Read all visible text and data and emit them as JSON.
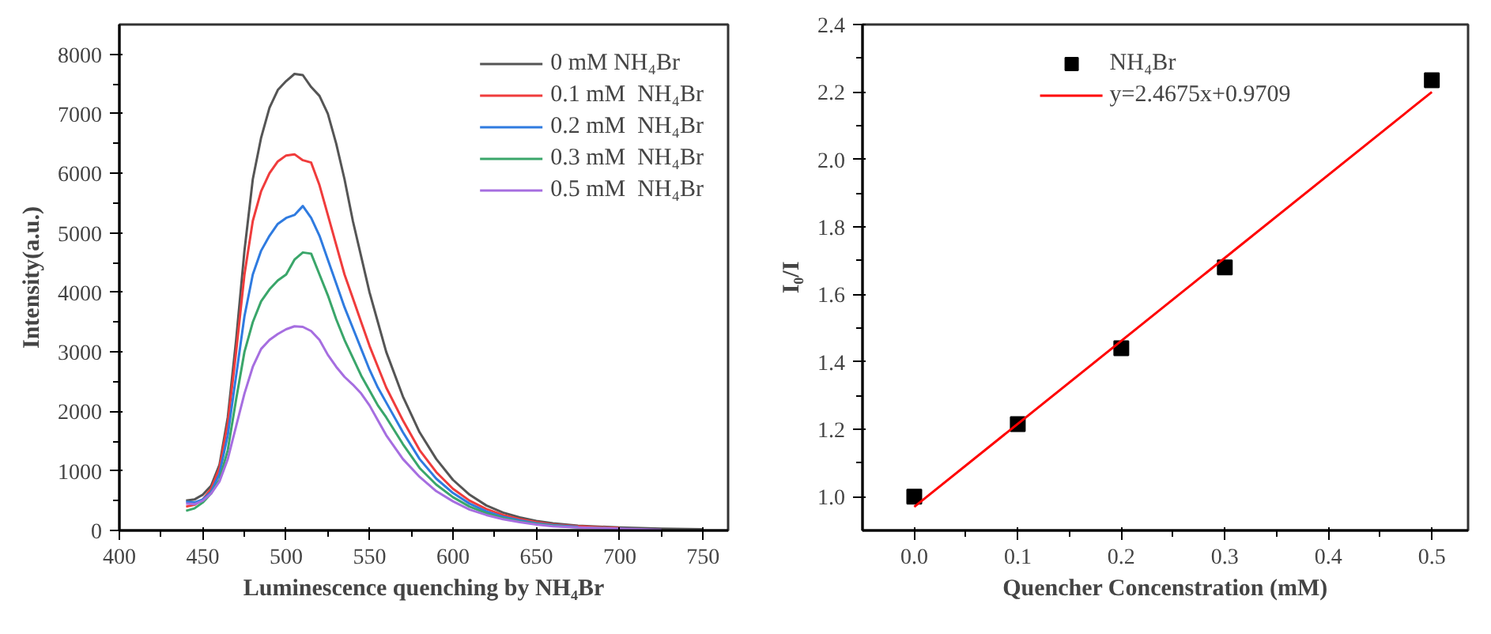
{
  "chart_data": [
    {
      "type": "line",
      "xlabel": "Luminescence quenching by NH₄Br",
      "ylabel": "Intensity(a.u.)",
      "xlim": [
        400,
        765
      ],
      "ylim": [
        0,
        8500
      ],
      "xticks": [
        400,
        450,
        500,
        550,
        600,
        650,
        700,
        750
      ],
      "yticks": [
        0,
        1000,
        2000,
        3000,
        4000,
        5000,
        6000,
        7000,
        8000
      ],
      "legend": "top right",
      "x": [
        440,
        445,
        450,
        455,
        460,
        465,
        470,
        475,
        480,
        485,
        490,
        495,
        500,
        505,
        510,
        515,
        520,
        525,
        530,
        535,
        540,
        545,
        550,
        555,
        560,
        570,
        580,
        590,
        600,
        610,
        620,
        630,
        640,
        650,
        660,
        675,
        700,
        725,
        750
      ],
      "series": [
        {
          "name": "0 mM NH₄Br",
          "color": "#555555",
          "values": [
            500,
            520,
            600,
            750,
            1100,
            1900,
            3200,
            4700,
            5900,
            6600,
            7100,
            7400,
            7550,
            7670,
            7650,
            7450,
            7300,
            7000,
            6500,
            5900,
            5200,
            4600,
            4000,
            3500,
            3000,
            2250,
            1650,
            1200,
            850,
            600,
            420,
            300,
            220,
            160,
            120,
            80,
            50,
            30,
            20
          ]
        },
        {
          "name": "0.1 mM  NH₄Br",
          "color": "#f03c3c",
          "x": [
            440,
            445,
            450,
            455,
            460,
            465,
            470,
            475,
            480,
            485,
            490,
            495,
            500,
            505,
            510,
            515,
            520,
            525,
            530,
            535,
            540,
            545,
            550,
            555,
            560,
            570,
            580,
            590,
            600,
            610,
            620,
            630,
            640,
            650,
            660,
            675,
            700
          ],
          "values": [
            400,
            430,
            520,
            700,
            1050,
            1800,
            3000,
            4300,
            5200,
            5700,
            6000,
            6200,
            6300,
            6320,
            6220,
            6180,
            5800,
            5300,
            4800,
            4300,
            3900,
            3500,
            3100,
            2750,
            2400,
            1850,
            1350,
            980,
            700,
            500,
            360,
            260,
            190,
            140,
            100,
            70,
            40
          ]
        },
        {
          "name": "0.2 mM  NH₄Br",
          "color": "#2f7be0",
          "x": [
            440,
            445,
            450,
            455,
            460,
            465,
            470,
            475,
            480,
            485,
            490,
            495,
            500,
            505,
            510,
            515,
            520,
            525,
            530,
            535,
            540,
            545,
            550,
            555,
            560,
            570,
            580,
            590,
            600,
            610,
            620,
            630,
            640,
            650,
            660,
            675
          ],
          "values": [
            480,
            470,
            520,
            650,
            950,
            1600,
            2600,
            3600,
            4300,
            4700,
            4950,
            5150,
            5250,
            5300,
            5450,
            5250,
            4950,
            4550,
            4150,
            3750,
            3400,
            3050,
            2700,
            2400,
            2150,
            1650,
            1200,
            870,
            630,
            450,
            320,
            230,
            170,
            120,
            90,
            60
          ]
        },
        {
          "name": "0.3 mM  NH₄Br",
          "color": "#3aa66a",
          "x": [
            440,
            445,
            450,
            455,
            460,
            465,
            470,
            475,
            480,
            485,
            490,
            495,
            500,
            505,
            510,
            515,
            520,
            525,
            530,
            535,
            540,
            545,
            550,
            555,
            560,
            570,
            580,
            590,
            600,
            610,
            620,
            630,
            640,
            650,
            660,
            675,
            700
          ],
          "values": [
            330,
            370,
            470,
            620,
            850,
            1350,
            2200,
            3000,
            3500,
            3850,
            4050,
            4200,
            4300,
            4550,
            4670,
            4650,
            4300,
            3950,
            3550,
            3200,
            2900,
            2600,
            2350,
            2100,
            1900,
            1450,
            1050,
            770,
            560,
            400,
            290,
            210,
            150,
            110,
            80,
            50,
            30
          ]
        },
        {
          "name": "0.5 mM  NH₄Br",
          "color": "#a66ee0",
          "x": [
            440,
            445,
            450,
            455,
            460,
            465,
            470,
            475,
            480,
            485,
            490,
            495,
            500,
            505,
            510,
            515,
            520,
            525,
            530,
            535,
            540,
            545,
            550,
            555,
            560,
            570,
            580,
            590,
            600,
            610,
            620,
            630,
            640,
            650,
            660,
            675,
            700,
            725
          ],
          "values": [
            450,
            440,
            500,
            620,
            820,
            1200,
            1750,
            2300,
            2750,
            3050,
            3200,
            3300,
            3380,
            3430,
            3420,
            3350,
            3200,
            2950,
            2750,
            2580,
            2450,
            2300,
            2100,
            1850,
            1600,
            1200,
            900,
            660,
            490,
            350,
            260,
            190,
            140,
            100,
            70,
            50,
            30,
            10
          ]
        }
      ]
    },
    {
      "type": "scatter",
      "xlabel": "Quencher Concenstration (mM)",
      "ylabel": "I₀/I",
      "xlim": [
        -0.05,
        0.535
      ],
      "ylim": [
        0.9,
        2.4
      ],
      "xticks": [
        {
          "value": 0,
          "label": "0.0"
        },
        0.1,
        0.2,
        0.3,
        0.4,
        0.5
      ],
      "yticks": [
        {
          "value": 1,
          "label": "1.0"
        },
        1.2,
        1.4,
        1.6,
        1.8,
        {
          "value": 2,
          "label": "2.0"
        },
        2.2,
        2.4
      ],
      "legend": "top",
      "series": [
        {
          "name": "NH₄Br",
          "type": "scatter",
          "marker": "square",
          "color": "#000000",
          "x": [
            0,
            0.1,
            0.2,
            0.3,
            0.5
          ],
          "values": [
            1.0,
            1.215,
            1.44,
            1.68,
            2.235
          ]
        },
        {
          "name": "y=2.4675x+0.9709",
          "type": "line",
          "color": "#ff0000",
          "x": [
            0,
            0.5
          ],
          "values": [
            0.97,
            2.2
          ]
        }
      ]
    }
  ]
}
